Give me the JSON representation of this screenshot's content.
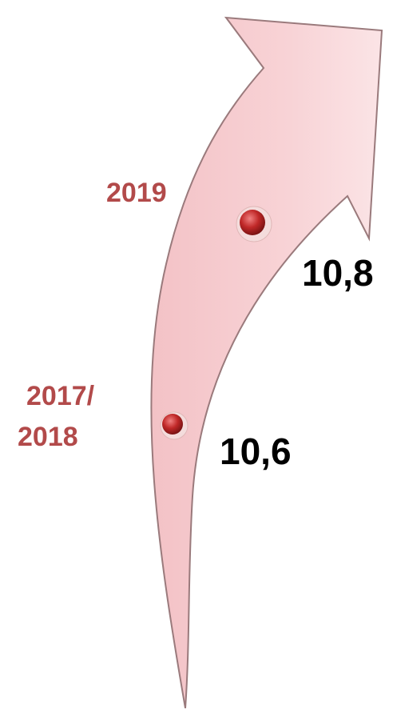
{
  "points": [
    {
      "label_lines": [
        "2017/",
        "2018"
      ],
      "value": "10,6"
    },
    {
      "label_lines": [
        "2019"
      ],
      "value": "10,8"
    }
  ]
}
